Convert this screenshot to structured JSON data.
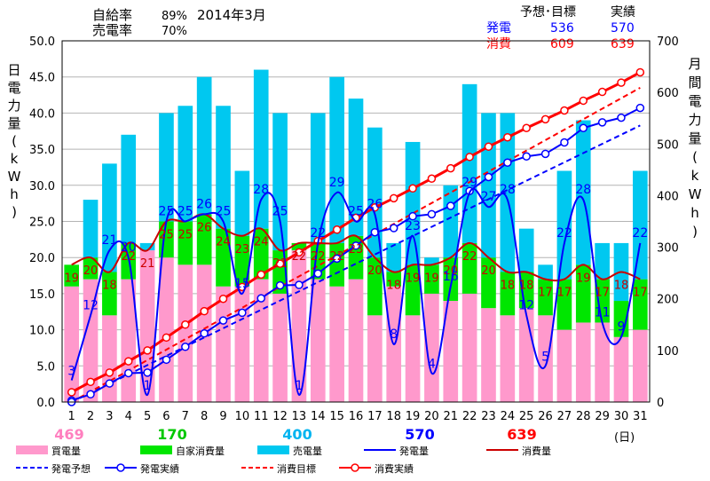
{
  "header": {
    "self_rate_label": "自給率",
    "self_rate_value": "89%",
    "sell_rate_label": "売電率",
    "sell_rate_value": "70%",
    "period": "2014年3月",
    "col_forecast": "予想･目標",
    "col_actual": "実績",
    "gen_label": "発電",
    "gen_target": "536",
    "gen_actual": "570",
    "cons_label": "消費",
    "cons_target": "609",
    "cons_actual": "639"
  },
  "axes": {
    "left_title": "日電力量(kWh)",
    "right_title": "月間電力量(kWh)",
    "x_unit": "(日)",
    "left_ticks": [
      "0.0",
      "5.0",
      "10.0",
      "15.0",
      "20.0",
      "25.0",
      "30.0",
      "35.0",
      "40.0",
      "45.0",
      "50.0"
    ],
    "right_ticks": [
      "0",
      "100",
      "200",
      "300",
      "400",
      "500",
      "600",
      "700"
    ]
  },
  "totals": [
    {
      "value": "469",
      "color": "#ff7fbf"
    },
    {
      "value": "170",
      "color": "#00c800"
    },
    {
      "value": "400",
      "color": "#00b4f0"
    },
    {
      "value": "570",
      "color": "#0000ff"
    },
    {
      "value": "639",
      "color": "#ff0000"
    }
  ],
  "legend": [
    {
      "label": "買電量",
      "kind": "box",
      "color": "#ff99cc"
    },
    {
      "label": "自家消費量",
      "kind": "box",
      "color": "#00e600"
    },
    {
      "label": "売電量",
      "kind": "box",
      "color": "#00c8f0"
    },
    {
      "label": "発電量",
      "kind": "line",
      "color": "#0000ff"
    },
    {
      "label": "消費量",
      "kind": "line",
      "color": "#cc0000"
    },
    {
      "label": "発電予想",
      "kind": "dash",
      "color": "#0000ff"
    },
    {
      "label": "発電実績",
      "kind": "marker",
      "color": "#0000ff"
    },
    {
      "label": "消費目標",
      "kind": "dash",
      "color": "#ff0000"
    },
    {
      "label": "消費実績",
      "kind": "marker",
      "color": "#ff0000"
    }
  ],
  "chart_data": {
    "type": "bar",
    "x": [
      1,
      2,
      3,
      4,
      5,
      6,
      7,
      8,
      9,
      10,
      11,
      12,
      13,
      14,
      15,
      16,
      17,
      18,
      19,
      20,
      21,
      22,
      23,
      24,
      25,
      26,
      27,
      28,
      29,
      30,
      31
    ],
    "ylim_left": [
      0,
      50
    ],
    "ylim_right": [
      0,
      700
    ],
    "colors": {
      "buy": "#ff99cc",
      "self": "#00e600",
      "sell": "#00c8f0",
      "gen": "#0000ff",
      "cons": "#cc0000"
    },
    "series": [
      {
        "name": "買電量",
        "values": [
          16,
          17,
          12,
          17,
          21,
          20,
          19,
          19,
          16,
          16,
          17,
          15,
          21,
          17,
          16,
          17,
          12,
          16,
          12,
          15,
          14,
          15,
          13,
          12,
          13,
          12,
          10,
          11,
          11,
          9,
          10
        ]
      },
      {
        "name": "自家消費量",
        "values": [
          3,
          3,
          6,
          5,
          0,
          5,
          6,
          7,
          8,
          7,
          7,
          6,
          1,
          5,
          6,
          6,
          8,
          2,
          7,
          4,
          6,
          7,
          7,
          6,
          5,
          5,
          7,
          8,
          6,
          5,
          7
        ]
      },
      {
        "name": "売電量",
        "values": [
          0,
          8,
          15,
          15,
          1,
          15,
          16,
          19,
          17,
          9,
          22,
          19,
          0,
          18,
          23,
          19,
          18,
          4,
          17,
          1,
          10,
          22,
          20,
          22,
          6,
          2,
          15,
          20,
          5,
          8,
          15
        ]
      },
      {
        "name": "発電量",
        "values": [
          3,
          12,
          21,
          20,
          1,
          25,
          25,
          26,
          25,
          15,
          28,
          25,
          1,
          22,
          29,
          25,
          26,
          8,
          23,
          4,
          16,
          29,
          27,
          28,
          12,
          5,
          22,
          28,
          11,
          9,
          22
        ]
      },
      {
        "name": "消費量",
        "values": [
          19,
          20,
          18,
          22,
          21,
          25,
          25,
          26,
          24,
          23,
          24,
          21,
          22,
          22,
          22,
          23,
          20,
          18,
          19,
          19,
          20,
          22,
          20,
          18,
          18,
          17,
          17,
          19,
          17,
          18,
          17
        ]
      }
    ],
    "cumulative": {
      "gen_actual": [
        3,
        15,
        36,
        56,
        57,
        82,
        107,
        133,
        158,
        173,
        201,
        226,
        227,
        249,
        278,
        303,
        329,
        337,
        360,
        364,
        380,
        409,
        436,
        464,
        476,
        481,
        503,
        531,
        542,
        551,
        570
      ],
      "cons_actual": [
        19,
        39,
        57,
        79,
        100,
        125,
        150,
        176,
        200,
        223,
        247,
        268,
        290,
        312,
        334,
        357,
        377,
        395,
        414,
        433,
        453,
        475,
        495,
        513,
        531,
        548,
        565,
        584,
        601,
        619,
        639
      ],
      "gen_forecast_end": 536,
      "cons_target_end": 609
    }
  }
}
